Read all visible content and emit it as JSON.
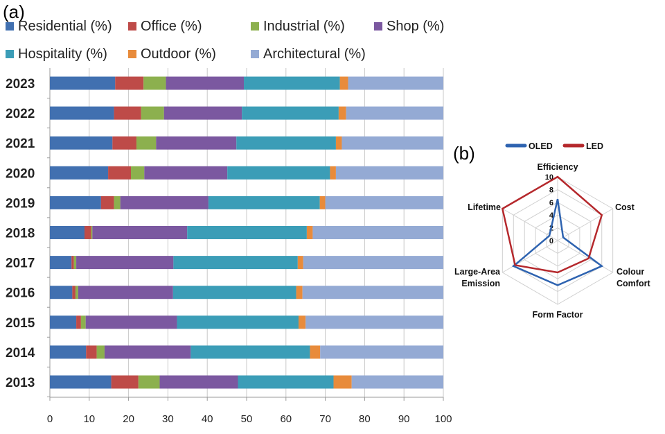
{
  "chart_data": [
    {
      "panel_label": "(a)",
      "type": "bar",
      "orientation": "horizontal",
      "stacked": true,
      "categories": [
        "2023",
        "2022",
        "2021",
        "2020",
        "2019",
        "2018",
        "2017",
        "2016",
        "2015",
        "2014",
        "2013"
      ],
      "series": [
        {
          "name": "Residential  (%)",
          "color": "#4170B0",
          "values": [
            16.6,
            16.3,
            15.9,
            14.8,
            13.0,
            8.8,
            5.5,
            5.7,
            6.7,
            9.2,
            15.6
          ]
        },
        {
          "name": "Office (%)",
          "color": "#BE4B48",
          "values": [
            7.2,
            6.9,
            6.1,
            5.8,
            3.3,
            1.7,
            0.6,
            0.8,
            1.2,
            2.7,
            6.9
          ]
        },
        {
          "name": "Industrial (%)",
          "color": "#8CB04E",
          "values": [
            5.7,
            5.8,
            5.0,
            3.4,
            1.6,
            0.3,
            0.6,
            0.7,
            1.2,
            2.0,
            5.4
          ]
        },
        {
          "name": "Shop (%)",
          "color": "#7B58A0",
          "values": [
            19.8,
            19.8,
            20.4,
            21.1,
            22.4,
            24.1,
            24.7,
            24.1,
            23.2,
            21.9,
            19.9
          ]
        },
        {
          "name": "Hospitality (%)",
          "color": "#3B9DB7",
          "values": [
            24.4,
            24.6,
            25.3,
            26.1,
            28.3,
            30.4,
            31.6,
            31.3,
            30.9,
            30.3,
            24.3
          ]
        },
        {
          "name": "Outdoor (%)",
          "color": "#E88B3B",
          "values": [
            2.1,
            1.9,
            1.5,
            1.5,
            1.4,
            1.5,
            1.4,
            1.6,
            1.8,
            2.6,
            4.6
          ]
        },
        {
          "name": "Architectural (%)",
          "color": "#94AAD4",
          "values": [
            24.2,
            24.7,
            25.8,
            27.3,
            30.0,
            33.2,
            35.6,
            35.8,
            35.0,
            31.3,
            23.3
          ]
        }
      ],
      "xlim": [
        0,
        100
      ],
      "xticks": [
        "0",
        "10",
        "20",
        "30",
        "40",
        "50",
        "60",
        "70",
        "80",
        "90",
        "100"
      ],
      "grid": true,
      "legend_position": "top"
    },
    {
      "panel_label": "(b)",
      "type": "radar",
      "axes": [
        "Efficiency",
        "Cost",
        "Colour Comfort",
        "Form Factor",
        "Large-Area Emission",
        "Lifetime"
      ],
      "rticks": [
        "0",
        "2",
        "4",
        "6",
        "8",
        "10"
      ],
      "rlim": [
        0,
        10
      ],
      "series": [
        {
          "name": "OLED",
          "color": "#2E63B0",
          "values": [
            6.5,
            1,
            8,
            7,
            8,
            1.5
          ]
        },
        {
          "name": "LED",
          "color": "#B5282C",
          "values": [
            10,
            8,
            5.6,
            5,
            7.7,
            10
          ]
        }
      ],
      "legend_position": "top"
    }
  ]
}
